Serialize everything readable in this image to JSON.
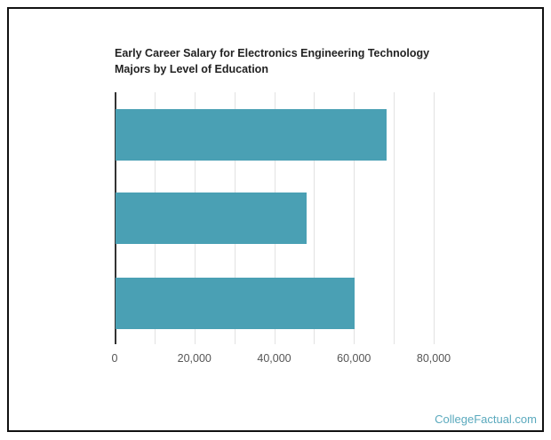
{
  "chart_data": {
    "type": "bar",
    "orientation": "horizontal",
    "title": "Early Career Salary for Electronics Engineering Technology Majors by Level of Education",
    "title_lines": [
      "Early Career Salary for Electronics Engineering Technology",
      "Majors by Level of Education"
    ],
    "categories": [
      "",
      "",
      ""
    ],
    "values": [
      68000,
      48000,
      60000
    ],
    "xlabel": "",
    "ylabel": "",
    "xlim": [
      0,
      80000
    ],
    "x_ticks": [
      0,
      20000,
      40000,
      60000,
      80000
    ],
    "x_tick_labels": [
      "0",
      "20,000",
      "40,000",
      "60,000",
      "80,000"
    ],
    "gridlines_every": 10000,
    "grid": true,
    "legend": null,
    "bar_color": "#4aa0b4"
  },
  "watermark": "CollegeFactual.com",
  "colors": {
    "bar": "#4aa0b4",
    "grid": "#e2e2e2",
    "axis": "#333333",
    "watermark": "#5aa9bd",
    "border": "#111111"
  }
}
